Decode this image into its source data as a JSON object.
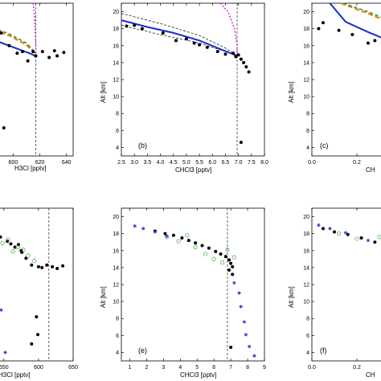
{
  "figure": {
    "panels_top": [
      "(b)",
      "(c)"
    ],
    "panels_bottom": [
      "(e)",
      "(f)"
    ]
  },
  "chart_data": [
    {
      "id": "a",
      "type": "scatter",
      "panel_label": "",
      "xlabel": "H3Cl [pptv]",
      "ylabel": "",
      "xlim": [
        566,
        645
      ],
      "ylim": [
        3,
        21
      ],
      "xticks": [
        580,
        600,
        620,
        640
      ],
      "yticks": [],
      "vline": 617,
      "obs": [
        [
          567,
          17.9
        ],
        [
          572,
          17.5
        ],
        [
          575,
          17.1
        ],
        [
          578,
          16.6
        ],
        [
          583,
          16.8
        ],
        [
          586,
          16.2
        ],
        [
          591,
          17.5
        ],
        [
          597,
          16.0
        ],
        [
          603,
          15.1
        ],
        [
          607,
          15.3
        ],
        [
          615,
          15.3
        ],
        [
          617,
          14.8
        ],
        [
          622,
          15.3
        ],
        [
          627,
          14.6
        ],
        [
          631,
          15.4
        ],
        [
          633,
          14.8
        ],
        [
          638,
          15.2
        ],
        [
          611,
          14.2
        ],
        [
          582,
          14.2
        ],
        [
          581,
          10.3
        ],
        [
          583,
          8.7
        ],
        [
          589,
          8.9
        ],
        [
          590,
          6.0
        ],
        [
          593,
          6.3
        ]
      ],
      "model_blue": [
        [
          566,
          17.6
        ],
        [
          583,
          16.8
        ],
        [
          597,
          16.0
        ],
        [
          607,
          15.4
        ],
        [
          614,
          15.0
        ],
        [
          617,
          14.7
        ]
      ],
      "model_orange": [
        [
          566,
          19.4
        ],
        [
          580,
          18.2
        ],
        [
          597,
          17.2
        ],
        [
          610,
          16.1
        ],
        [
          617,
          15.0
        ]
      ],
      "model_green": [
        [
          566,
          19.6
        ],
        [
          580,
          18.4
        ],
        [
          597,
          17.4
        ],
        [
          610,
          16.3
        ],
        [
          617,
          15.1
        ]
      ],
      "model_magenta": [
        [
          615,
          21
        ],
        [
          616,
          19.5
        ],
        [
          616.5,
          18.0
        ],
        [
          617,
          16.0
        ],
        [
          617,
          14.7
        ]
      ]
    },
    {
      "id": "b",
      "type": "scatter",
      "panel_label": "(b)",
      "xlabel": "CHCl3 [pptv]",
      "ylabel": "Alt [km]",
      "xlim": [
        2.5,
        8.0
      ],
      "ylim": [
        3,
        21
      ],
      "xticks": [
        2.5,
        3.0,
        3.5,
        4.0,
        4.5,
        5.0,
        5.5,
        6.0,
        6.5,
        7.0,
        7.5,
        8.0
      ],
      "yticks": [
        4,
        6,
        8,
        10,
        12,
        14,
        16,
        18,
        20
      ],
      "vline": 6.95,
      "obs": [
        [
          2.7,
          18.3
        ],
        [
          3.0,
          18.4
        ],
        [
          3.3,
          18.0
        ],
        [
          4.1,
          17.5
        ],
        [
          4.6,
          16.6
        ],
        [
          5.0,
          16.8
        ],
        [
          5.3,
          16.3
        ],
        [
          5.5,
          16.1
        ],
        [
          5.8,
          15.8
        ],
        [
          6.2,
          15.3
        ],
        [
          6.5,
          15.0
        ],
        [
          6.8,
          15.1
        ],
        [
          6.9,
          14.7
        ],
        [
          7.0,
          14.9
        ],
        [
          7.1,
          14.4
        ],
        [
          7.2,
          14.0
        ],
        [
          7.3,
          13.5
        ],
        [
          7.4,
          12.9
        ],
        [
          7.1,
          4.6
        ]
      ],
      "model_blue": [
        [
          2.5,
          19.0
        ],
        [
          3.5,
          18.2
        ],
        [
          4.5,
          17.5
        ],
        [
          5.5,
          16.6
        ],
        [
          6.3,
          15.6
        ],
        [
          6.95,
          14.8
        ]
      ],
      "model_dashed": [
        [
          2.5,
          19.8
        ],
        [
          4.0,
          18.6
        ],
        [
          5.5,
          17.2
        ],
        [
          6.5,
          15.7
        ],
        [
          6.95,
          14.8
        ]
      ],
      "model_dashed2": [
        [
          2.5,
          18.4
        ],
        [
          4.0,
          17.3
        ],
        [
          5.5,
          16.3
        ],
        [
          6.5,
          15.3
        ],
        [
          6.95,
          14.8
        ]
      ],
      "model_magenta": [
        [
          6.3,
          21
        ],
        [
          6.6,
          20.0
        ],
        [
          6.85,
          18.0
        ],
        [
          6.95,
          16.0
        ],
        [
          6.95,
          14.8
        ]
      ]
    },
    {
      "id": "c",
      "type": "scatter",
      "panel_label": "(c)",
      "xlabel": "CH",
      "ylabel": "Alt [km]",
      "xlim": [
        0,
        0.5
      ],
      "ylim": [
        3,
        21
      ],
      "xticks": [
        0.0,
        0.2,
        0.4
      ],
      "yticks": [
        4,
        6,
        8,
        10,
        12,
        14,
        16,
        18,
        20
      ],
      "obs": [
        [
          0.03,
          18.0
        ],
        [
          0.05,
          18.7
        ],
        [
          0.12,
          17.8
        ],
        [
          0.18,
          17.3
        ],
        [
          0.25,
          16.3
        ],
        [
          0.28,
          16.6
        ],
        [
          0.33,
          16.0
        ],
        [
          0.38,
          15.7
        ],
        [
          0.42,
          15.4
        ],
        [
          0.46,
          15.0
        ]
      ],
      "model_blue": [
        [
          0.08,
          21
        ],
        [
          0.15,
          18.8
        ],
        [
          0.25,
          17.6
        ],
        [
          0.35,
          16.5
        ],
        [
          0.45,
          15.6
        ],
        [
          0.5,
          15.1
        ]
      ],
      "model_orange": [
        [
          0.13,
          21
        ],
        [
          0.25,
          19.8
        ],
        [
          0.35,
          18.7
        ],
        [
          0.45,
          17.8
        ],
        [
          0.5,
          17.3
        ]
      ],
      "model_green": [
        [
          0.14,
          21
        ],
        [
          0.25,
          20.0
        ],
        [
          0.35,
          18.9
        ],
        [
          0.45,
          18.0
        ],
        [
          0.5,
          17.5
        ]
      ]
    },
    {
      "id": "d",
      "type": "scatter",
      "panel_label": "",
      "xlabel": "H3Cl [pptv]",
      "ylabel": "",
      "xlim": [
        498,
        650
      ],
      "ylim": [
        3,
        21
      ],
      "xticks": [
        550,
        600,
        650
      ],
      "yticks": [],
      "vline": 615,
      "obs": [
        [
          502,
          18.0
        ],
        [
          520,
          17.9
        ],
        [
          528,
          17.4
        ],
        [
          540,
          17.0
        ],
        [
          545,
          17.6
        ],
        [
          555,
          17.1
        ],
        [
          560,
          16.8
        ],
        [
          566,
          16.4
        ],
        [
          571,
          16.7
        ],
        [
          576,
          15.8
        ],
        [
          582,
          15.1
        ],
        [
          590,
          14.3
        ],
        [
          600,
          14.1
        ],
        [
          605,
          14.0
        ],
        [
          612,
          14.3
        ],
        [
          620,
          14.1
        ],
        [
          627,
          13.9
        ],
        [
          635,
          14.2
        ],
        [
          575,
          16.0
        ],
        [
          597,
          8.2
        ],
        [
          599,
          6.1
        ],
        [
          590,
          5.0
        ]
      ],
      "obs2": [
        [
          510,
          18.2
        ],
        [
          518,
          17.6
        ],
        [
          531,
          17.4
        ],
        [
          537,
          17.9
        ],
        [
          548,
          16.9
        ],
        [
          556,
          17.3
        ],
        [
          563,
          15.9
        ],
        [
          570,
          16.4
        ],
        [
          578,
          16.1
        ],
        [
          585,
          15.4
        ],
        [
          594,
          14.8
        ]
      ],
      "obs3": [
        [
          505,
          17.3
        ],
        [
          527,
          16.0
        ],
        [
          538,
          16.6
        ],
        [
          541,
          12.0
        ],
        [
          542,
          10.3
        ],
        [
          546,
          9.0
        ],
        [
          532,
          8.0
        ],
        [
          527,
          5.0
        ],
        [
          552,
          4.0
        ],
        [
          544,
          6.5
        ]
      ]
    },
    {
      "id": "e",
      "type": "scatter",
      "panel_label": "(e)",
      "xlabel": "CHCl3 [pptv]",
      "ylabel": "Alt [km]",
      "xlim": [
        0.5,
        9
      ],
      "ylim": [
        3,
        21
      ],
      "xticks": [
        1,
        2,
        3,
        4,
        5,
        6,
        7,
        8,
        9
      ],
      "yticks": [
        4,
        6,
        8,
        10,
        12,
        14,
        16,
        18,
        20
      ],
      "vline": 6.8,
      "obs": [
        [
          2.5,
          18.3
        ],
        [
          3.1,
          18.0
        ],
        [
          3.6,
          17.8
        ],
        [
          4.1,
          17.5
        ],
        [
          4.5,
          17.2
        ],
        [
          4.9,
          16.9
        ],
        [
          5.3,
          16.6
        ],
        [
          5.7,
          16.3
        ],
        [
          6.1,
          15.9
        ],
        [
          6.4,
          15.6
        ],
        [
          6.7,
          15.3
        ],
        [
          6.9,
          14.9
        ],
        [
          7.0,
          14.5
        ],
        [
          7.1,
          14.1
        ],
        [
          6.9,
          13.7
        ],
        [
          7.1,
          13.2
        ],
        [
          7.0,
          4.6
        ]
      ],
      "obs2": [
        [
          3.2,
          17.6
        ],
        [
          3.9,
          17.1
        ],
        [
          4.4,
          17.8
        ],
        [
          4.9,
          16.4
        ],
        [
          5.5,
          15.6
        ],
        [
          6.0,
          15.0
        ],
        [
          6.5,
          14.6
        ],
        [
          6.8,
          16.1
        ],
        [
          7.2,
          15.2
        ]
      ],
      "obs3": [
        [
          1.3,
          18.9
        ],
        [
          1.8,
          18.6
        ],
        [
          2.5,
          18.2
        ],
        [
          3.2,
          17.7
        ],
        [
          7.2,
          12.2
        ],
        [
          7.5,
          11.0
        ],
        [
          7.6,
          9.4
        ],
        [
          7.8,
          7.6
        ],
        [
          7.9,
          6.1
        ],
        [
          8.1,
          4.7
        ],
        [
          8.4,
          3.6
        ]
      ]
    },
    {
      "id": "f",
      "type": "scatter",
      "panel_label": "(f)",
      "xlabel": "CH",
      "ylabel": "Alt [km]",
      "xlim": [
        0,
        0.5
      ],
      "ylim": [
        3,
        21
      ],
      "xticks": [
        0.0,
        0.2,
        0.4
      ],
      "yticks": [
        4,
        6,
        8,
        10,
        12,
        14,
        16,
        18,
        20
      ],
      "obs": [
        [
          0.05,
          18.6
        ],
        [
          0.1,
          18.2
        ],
        [
          0.16,
          17.9
        ],
        [
          0.22,
          17.5
        ],
        [
          0.28,
          17.0
        ],
        [
          0.33,
          16.6
        ],
        [
          0.38,
          16.3
        ],
        [
          0.43,
          16.0
        ],
        [
          0.47,
          15.6
        ]
      ],
      "obs2": [
        [
          0.12,
          18.0
        ],
        [
          0.2,
          17.4
        ],
        [
          0.3,
          17.6
        ],
        [
          0.35,
          16.8
        ],
        [
          0.42,
          17.2
        ],
        [
          0.48,
          16.8
        ]
      ],
      "obs3": [
        [
          0.03,
          19.0
        ],
        [
          0.08,
          18.6
        ],
        [
          0.15,
          18.1
        ],
        [
          0.25,
          17.2
        ],
        [
          0.4,
          17.8
        ]
      ]
    }
  ]
}
